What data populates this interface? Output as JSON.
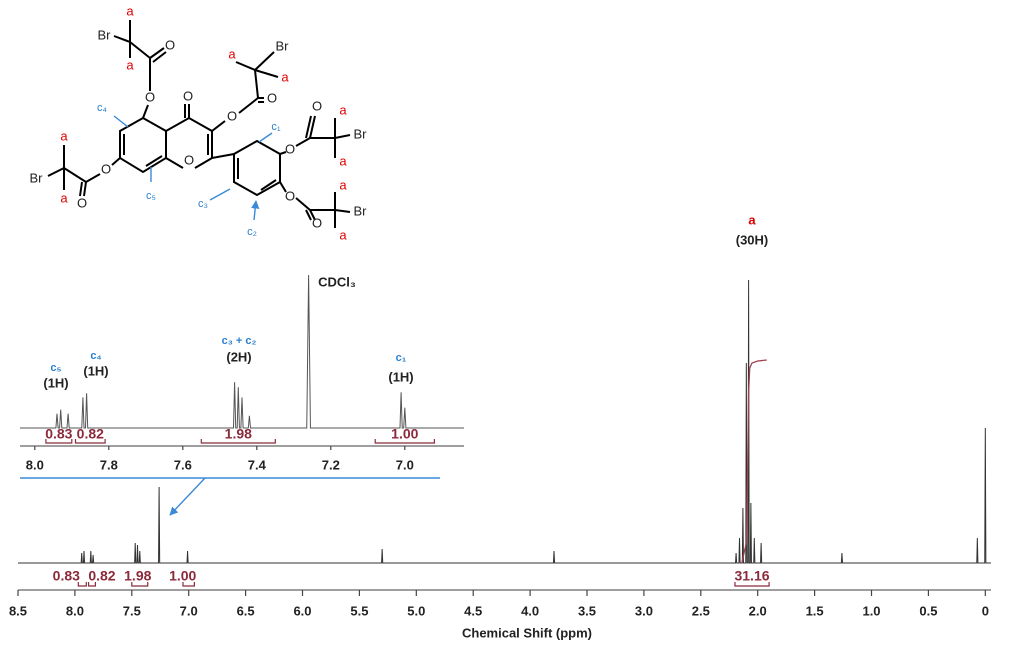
{
  "structure": {
    "labels": [
      "a",
      "Br",
      "O",
      "a",
      "O",
      "O",
      "a",
      "Br",
      "a",
      "O",
      "O",
      "c₄",
      "c₁",
      "O",
      "a",
      "Br",
      "a",
      "O",
      "a",
      "Br",
      "O",
      "a",
      "O",
      "O",
      "c₅",
      "c₃",
      "c₂",
      "O",
      "a",
      "Br",
      "O",
      "a"
    ]
  },
  "chart_data": [
    {
      "type": "line",
      "xlabel": "Chemical Shift (ppm)",
      "color": "#333333",
      "xlim": [
        8.5,
        -0.05
      ],
      "ylim": [
        0,
        300
      ],
      "xticks": [
        8.5,
        {
          "value": 8,
          "label": "8.0"
        },
        7.5,
        {
          "value": 7,
          "label": "7.0"
        },
        6.5,
        {
          "value": 6,
          "label": "6.0"
        },
        5.5,
        {
          "value": 5,
          "label": "5.0"
        },
        4.5,
        {
          "value": 4,
          "label": "4.0"
        },
        3.5,
        {
          "value": 3,
          "label": "3.0"
        },
        2.5,
        {
          "value": 2,
          "label": "2.0"
        },
        1.5,
        {
          "value": 1,
          "label": "1.0"
        },
        0.5,
        0
      ],
      "x": [
        8.5,
        7.945,
        7.94,
        7.935,
        7.925,
        7.92,
        7.915,
        7.865,
        7.86,
        7.855,
        7.845,
        7.84,
        7.835,
        7.475,
        7.47,
        7.465,
        7.455,
        7.45,
        7.445,
        7.435,
        7.43,
        7.425,
        7.265,
        7.26,
        7.255,
        7.015,
        7.01,
        7.005,
        5.305,
        5.3,
        5.295,
        3.795,
        3.79,
        3.785,
        2.195,
        2.19,
        2.185,
        2.165,
        2.16,
        2.155,
        2.135,
        2.13,
        2.125,
        2.105,
        2.1,
        2.095,
        2.085,
        2.08,
        2.075,
        2.065,
        2.06,
        2.055,
        2.035,
        2.03,
        2.025,
        1.975,
        1.97,
        1.965,
        1.265,
        1.26,
        1.255,
        0.075,
        0.07,
        0.065,
        0.005,
        0,
        -0.005,
        -0.05
      ],
      "values": [
        0,
        0,
        10,
        0,
        0,
        12,
        0,
        0,
        12,
        0,
        0,
        8,
        0,
        0,
        20,
        0,
        0,
        18,
        0,
        0,
        12,
        0,
        0,
        76,
        0,
        0,
        12,
        0,
        0,
        14,
        0,
        0,
        12,
        0,
        0,
        10,
        0,
        0,
        25,
        0,
        0,
        55,
        0,
        0,
        200,
        0,
        0,
        283,
        0,
        0,
        60,
        0,
        0,
        25,
        0,
        0,
        20,
        0,
        0,
        10,
        0,
        0,
        25,
        0,
        0,
        135,
        0,
        0
      ],
      "annotations": [
        "a",
        "(30H)"
      ],
      "integral_color": "#8b2a3a",
      "integrals": [
        {
          "label": "0.83",
          "x": [
            7.97,
            7.9
          ]
        },
        {
          "label": "0.82",
          "x": [
            7.88,
            7.82
          ]
        },
        {
          "label": "1.98",
          "x": [
            7.5,
            7.36
          ]
        },
        {
          "label": "1.00",
          "x": [
            7.05,
            6.95
          ]
        },
        {
          "label": "31.16",
          "x": [
            2.2,
            1.9
          ]
        }
      ],
      "integral_curve": {
        "color": "#a04050",
        "x": [
          2.14,
          2.1,
          2.09,
          2.08,
          2.07,
          2.05,
          2.0,
          1.92
        ],
        "values": [
          0,
          20,
          80,
          170,
          195,
          200,
          202,
          203
        ]
      }
    },
    {
      "type": "line",
      "color": "#555555",
      "xlim": [
        8.04,
        6.84
      ],
      "ylim": [
        0,
        150
      ],
      "xticks": [
        {
          "value": 8,
          "label": "8.0"
        },
        7.8,
        7.6,
        7.4,
        7.2,
        {
          "value": 7,
          "label": "7.0"
        }
      ],
      "x": [
        8.04,
        7.943,
        7.94,
        7.937,
        7.933,
        7.93,
        7.927,
        7.913,
        7.91,
        7.907,
        7.873,
        7.87,
        7.867,
        7.863,
        7.86,
        7.857,
        7.463,
        7.46,
        7.457,
        7.453,
        7.45,
        7.447,
        7.443,
        7.44,
        7.437,
        7.423,
        7.42,
        7.417,
        7.265,
        7.26,
        7.255,
        7.013,
        7.01,
        7.007,
        7.003,
        7.0,
        6.997,
        6.84
      ],
      "values": [
        0,
        0,
        14,
        0,
        0,
        18,
        0,
        0,
        14,
        0,
        0,
        30,
        0,
        0,
        34,
        0,
        0,
        45,
        0,
        0,
        40,
        0,
        0,
        30,
        0,
        0,
        12,
        0,
        0,
        150,
        0,
        0,
        35,
        0,
        0,
        20,
        0,
        0
      ],
      "annotations": [
        "c₅",
        "(1H)",
        "c₄",
        "(1H)",
        "c₃ + c₂",
        "(2H)",
        "CDCl₃",
        "c₁",
        "(1H)"
      ],
      "integral_color": "#8b2a3a",
      "integrals": [
        {
          "label": "0.83",
          "x": [
            7.97,
            7.9
          ]
        },
        {
          "label": "0.82",
          "x": [
            7.89,
            7.81
          ]
        },
        {
          "label": "1.98",
          "x": [
            7.55,
            7.35
          ]
        },
        {
          "label": "1.00",
          "x": [
            7.08,
            6.92
          ]
        }
      ]
    }
  ]
}
